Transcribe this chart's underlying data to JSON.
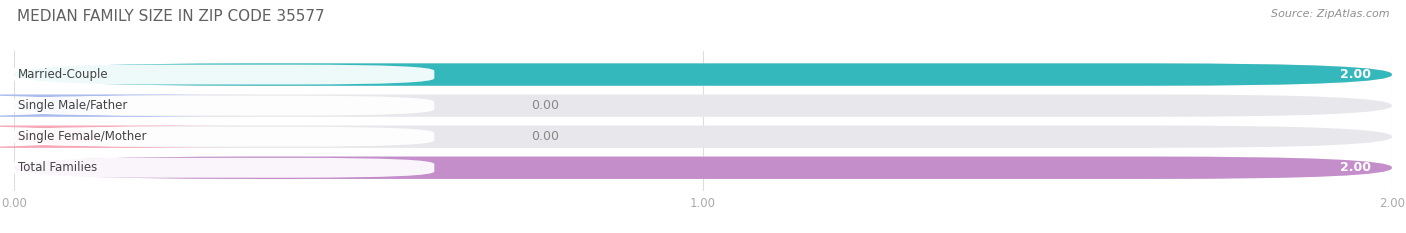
{
  "title": "MEDIAN FAMILY SIZE IN ZIP CODE 35577",
  "source": "Source: ZipAtlas.com",
  "categories": [
    "Married-Couple",
    "Single Male/Father",
    "Single Female/Mother",
    "Total Families"
  ],
  "values": [
    2.0,
    0.0,
    0.0,
    2.0
  ],
  "bar_colors": [
    "#35b8bc",
    "#aabbee",
    "#f5a8b8",
    "#c48ecb"
  ],
  "bg_bar_color": "#e8e8ec",
  "xlim": [
    0,
    2.0
  ],
  "xticks": [
    0.0,
    1.0,
    2.0
  ],
  "xtick_labels": [
    "0.00",
    "1.00",
    "2.00"
  ],
  "bar_height": 0.72,
  "label_fontsize": 8.5,
  "value_fontsize": 9,
  "title_fontsize": 11,
  "source_fontsize": 8,
  "background_color": "#ffffff",
  "title_color": "#606060",
  "source_color": "#909090",
  "tick_color": "#aaaaaa",
  "grid_color": "#dddddd"
}
